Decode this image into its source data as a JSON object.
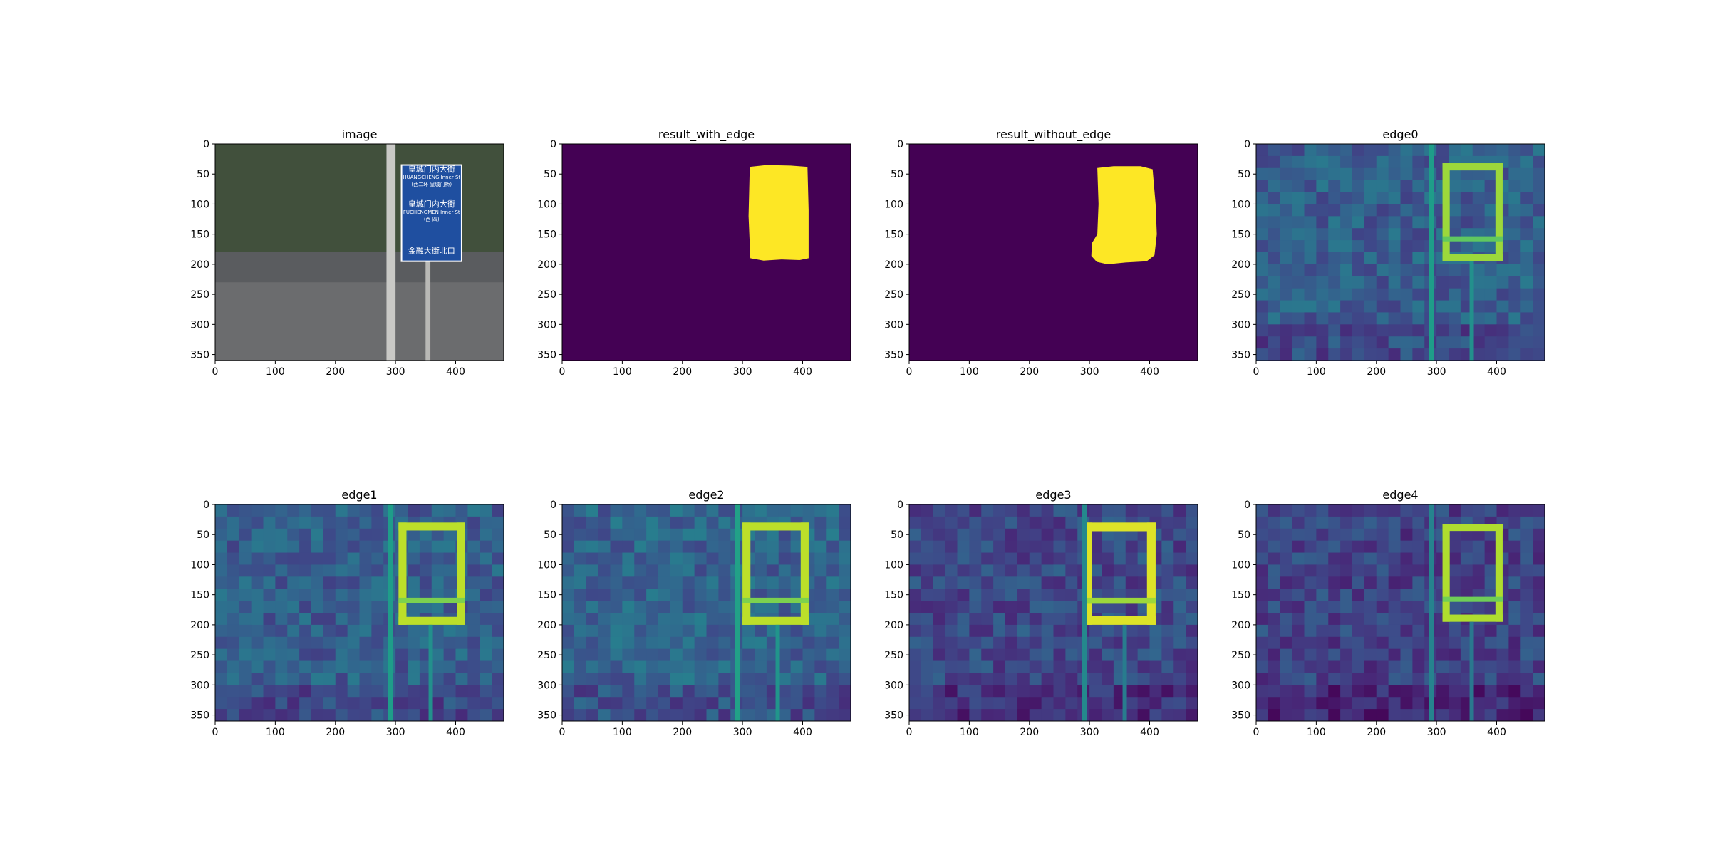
{
  "figure": {
    "background": "#ffffff",
    "colormap": "viridis"
  },
  "chart_data": [
    {
      "type": "heatmap",
      "title": "image",
      "content": "photo",
      "xlim": [
        0,
        480
      ],
      "ylim": [
        360,
        0
      ],
      "xticks": [
        0,
        100,
        200,
        300,
        400
      ],
      "yticks": [
        0,
        50,
        100,
        150,
        200,
        250,
        300,
        350
      ],
      "sign": {
        "bbox_data": [
          310,
          35,
          410,
          195
        ],
        "lines": [
          "皇城门内大街",
          "HUANGCHENG Inner St",
          "(西二环 皇城门桥)",
          "皇城门内大街",
          "FUCHENGMEN Inner St",
          "(西 四)",
          "金融大街北口"
        ]
      }
    },
    {
      "type": "heatmap",
      "title": "result_with_edge",
      "content": "mask",
      "xlim": [
        0,
        480
      ],
      "ylim": [
        360,
        0
      ],
      "xticks": [
        0,
        100,
        200,
        300,
        400
      ],
      "yticks": [
        0,
        50,
        100,
        150,
        200,
        250,
        300,
        350
      ],
      "mask_polygon": [
        [
          312,
          38
        ],
        [
          340,
          35
        ],
        [
          380,
          36
        ],
        [
          408,
          38
        ],
        [
          410,
          110
        ],
        [
          410,
          190
        ],
        [
          395,
          193
        ],
        [
          365,
          192
        ],
        [
          335,
          194
        ],
        [
          313,
          190
        ],
        [
          310,
          120
        ]
      ]
    },
    {
      "type": "heatmap",
      "title": "result_without_edge",
      "content": "mask",
      "xlim": [
        0,
        480
      ],
      "ylim": [
        360,
        0
      ],
      "xticks": [
        0,
        100,
        200,
        300,
        400
      ],
      "yticks": [
        0,
        50,
        100,
        150,
        200,
        250,
        300,
        350
      ],
      "mask_polygon": [
        [
          313,
          40
        ],
        [
          340,
          37
        ],
        [
          385,
          37
        ],
        [
          405,
          42
        ],
        [
          410,
          100
        ],
        [
          412,
          150
        ],
        [
          408,
          185
        ],
        [
          395,
          195
        ],
        [
          360,
          197
        ],
        [
          330,
          200
        ],
        [
          312,
          196
        ],
        [
          303,
          186
        ],
        [
          304,
          165
        ],
        [
          313,
          150
        ],
        [
          315,
          100
        ]
      ]
    },
    {
      "type": "heatmap",
      "title": "edge0",
      "content": "edge",
      "blocks": 1,
      "xlim": [
        0,
        480
      ],
      "ylim": [
        360,
        0
      ],
      "xticks": [
        0,
        100,
        200,
        300,
        400
      ],
      "yticks": [
        0,
        50,
        100,
        150,
        200,
        250,
        300,
        350
      ],
      "sign_box": [
        310,
        32,
        410,
        195
      ],
      "sign_level": 0.85,
      "bg_level": 0.3
    },
    {
      "type": "heatmap",
      "title": "edge1",
      "content": "edge",
      "blocks": 15,
      "xlim": [
        0,
        480
      ],
      "ylim": [
        360,
        0
      ],
      "xticks": [
        0,
        100,
        200,
        300,
        400
      ],
      "yticks": [
        0,
        50,
        100,
        150,
        200,
        250,
        300,
        350
      ],
      "sign_box": [
        305,
        30,
        415,
        200
      ],
      "sign_level": 0.9,
      "bg_level": 0.3
    },
    {
      "type": "heatmap",
      "title": "edge2",
      "content": "edge",
      "blocks": 15,
      "xlim": [
        0,
        480
      ],
      "ylim": [
        360,
        0
      ],
      "xticks": [
        0,
        100,
        200,
        300,
        400
      ],
      "yticks": [
        0,
        50,
        100,
        150,
        200,
        250,
        300,
        350
      ],
      "sign_box": [
        300,
        30,
        410,
        200
      ],
      "sign_level": 0.9,
      "bg_level": 0.32
    },
    {
      "type": "heatmap",
      "title": "edge3",
      "content": "edge",
      "blocks": 30,
      "xlim": [
        0,
        480
      ],
      "ylim": [
        360,
        0
      ],
      "xticks": [
        0,
        100,
        200,
        300,
        400
      ],
      "yticks": [
        0,
        50,
        100,
        150,
        200,
        250,
        300,
        350
      ],
      "sign_box": [
        290,
        30,
        410,
        200
      ],
      "sign_level": 0.95,
      "bg_level": 0.22
    },
    {
      "type": "heatmap",
      "title": "edge4",
      "content": "edge",
      "blocks": 1,
      "xlim": [
        0,
        480
      ],
      "ylim": [
        360,
        0
      ],
      "xticks": [
        0,
        100,
        200,
        300,
        400
      ],
      "yticks": [
        0,
        50,
        100,
        150,
        200,
        250,
        300,
        350
      ],
      "sign_box": [
        310,
        32,
        410,
        195
      ],
      "sign_level": 0.88,
      "bg_level": 0.2
    }
  ]
}
